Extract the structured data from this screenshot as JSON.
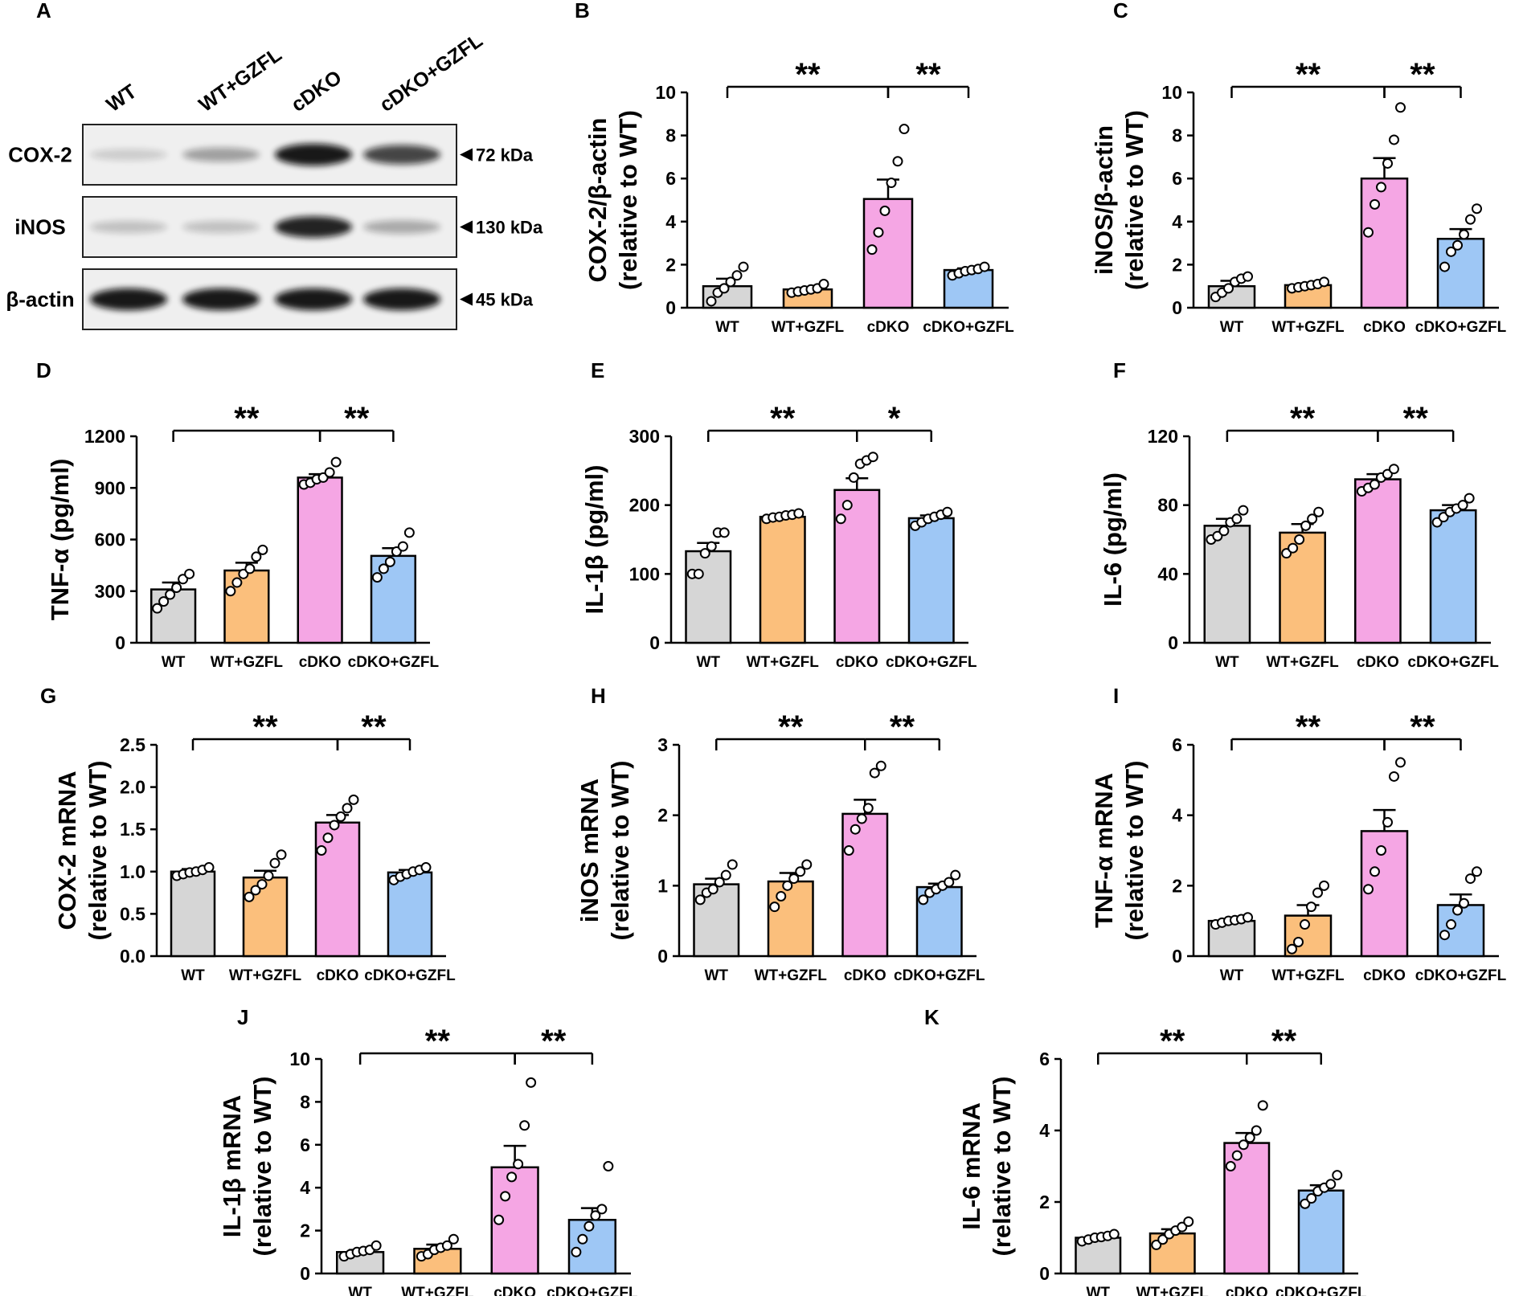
{
  "colors": {
    "WT": "#d6d6d6",
    "WT+GZFL": "#fbbf7c",
    "cDKO": "#f5a6e4",
    "cDKO+GZFL": "#9ec7f5"
  },
  "blot": {
    "letter": "A",
    "lanes": [
      "WT",
      "WT+GZFL",
      "cDKO",
      "cDKO+GZFL"
    ],
    "rows": [
      {
        "name": "COX-2",
        "kda": "72 kDa",
        "intensity": [
          0.15,
          0.35,
          0.95,
          0.75
        ]
      },
      {
        "name": "iNOS",
        "kda": "130 kDa",
        "intensity": [
          0.2,
          0.2,
          0.9,
          0.3
        ]
      },
      {
        "name": "β-actin",
        "kda": "45 kDa",
        "intensity": [
          0.95,
          0.95,
          0.95,
          0.95
        ]
      }
    ]
  },
  "chart_data": [
    {
      "letter": "B",
      "type": "bar",
      "title": "",
      "ylabel": [
        "COX-2/β-actin",
        "(relative to WT)"
      ],
      "categories": [
        "WT",
        "WT+GZFL",
        "cDKO",
        "cDKO+GZFL"
      ],
      "ylim": [
        0,
        10
      ],
      "yticks": [
        "0",
        "2",
        "4",
        "6",
        "8",
        "10"
      ],
      "values": [
        1.0,
        0.85,
        5.05,
        1.75
      ],
      "sem": [
        0.35,
        0.08,
        0.9,
        0.08
      ],
      "points": [
        [
          0.3,
          0.7,
          0.9,
          1.2,
          1.5,
          1.9
        ],
        [
          0.7,
          0.75,
          0.8,
          0.85,
          0.9,
          1.1
        ],
        [
          2.7,
          3.5,
          4.5,
          5.8,
          6.8,
          8.3
        ],
        [
          1.5,
          1.6,
          1.7,
          1.75,
          1.8,
          1.9
        ]
      ],
      "sig": [
        {
          "label": "**",
          "from": 0,
          "to": 2
        },
        {
          "label": "**",
          "from": 2,
          "to": 3
        }
      ]
    },
    {
      "letter": "C",
      "type": "bar",
      "title": "",
      "ylabel": [
        "iNOS/β-actin",
        "(relative to WT)"
      ],
      "categories": [
        "WT",
        "WT+GZFL",
        "cDKO",
        "cDKO+GZFL"
      ],
      "ylim": [
        0,
        10
      ],
      "yticks": [
        "0",
        "2",
        "4",
        "6",
        "8",
        "10"
      ],
      "values": [
        1.0,
        1.05,
        6.0,
        3.2
      ],
      "sem": [
        0.25,
        0.08,
        0.95,
        0.45
      ],
      "points": [
        [
          0.5,
          0.7,
          0.9,
          1.2,
          1.35,
          1.45
        ],
        [
          0.9,
          0.95,
          1.0,
          1.05,
          1.1,
          1.2
        ],
        [
          3.5,
          4.8,
          5.6,
          6.7,
          7.8,
          9.3
        ],
        [
          1.9,
          2.6,
          2.9,
          3.4,
          4.1,
          4.6
        ]
      ],
      "sig": [
        {
          "label": "**",
          "from": 0,
          "to": 2
        },
        {
          "label": "**",
          "from": 2,
          "to": 3
        }
      ]
    },
    {
      "letter": "D",
      "type": "bar",
      "title": "",
      "ylabel": [
        "TNF-α (pg/ml)"
      ],
      "categories": [
        "WT",
        "WT+GZFL",
        "cDKO",
        "cDKO+GZFL"
      ],
      "ylim": [
        0,
        1200
      ],
      "yticks": [
        "0",
        "300",
        "600",
        "900",
        "1200"
      ],
      "values": [
        310,
        420,
        960,
        505
      ],
      "sem": [
        40,
        45,
        20,
        45
      ],
      "points": [
        [
          200,
          240,
          280,
          320,
          370,
          400
        ],
        [
          300,
          350,
          400,
          430,
          500,
          540
        ],
        [
          920,
          930,
          950,
          960,
          990,
          1050
        ],
        [
          380,
          430,
          470,
          530,
          560,
          640
        ]
      ],
      "sig": [
        {
          "label": "**",
          "from": 0,
          "to": 2
        },
        {
          "label": "**",
          "from": 2,
          "to": 3
        }
      ]
    },
    {
      "letter": "E",
      "type": "bar",
      "title": "",
      "ylabel": [
        "IL-1β (pg/ml)"
      ],
      "categories": [
        "WT",
        "WT+GZFL",
        "cDKO",
        "cDKO+GZFL"
      ],
      "ylim": [
        0,
        300
      ],
      "yticks": [
        "0",
        "100",
        "200",
        "300"
      ],
      "values": [
        133,
        183,
        222,
        181
      ],
      "sem": [
        12,
        3,
        17,
        4
      ],
      "points": [
        [
          100,
          100,
          130,
          140,
          160,
          160
        ],
        [
          180,
          182,
          183,
          185,
          186,
          188
        ],
        [
          180,
          200,
          240,
          260,
          265,
          270
        ],
        [
          170,
          175,
          180,
          183,
          186,
          190
        ]
      ],
      "sig": [
        {
          "label": "**",
          "from": 0,
          "to": 2
        },
        {
          "label": "*",
          "from": 2,
          "to": 3
        }
      ]
    },
    {
      "letter": "F",
      "type": "bar",
      "title": "",
      "ylabel": [
        "IL-6 (pg/ml)"
      ],
      "categories": [
        "WT",
        "WT+GZFL",
        "cDKO",
        "cDKO+GZFL"
      ],
      "ylim": [
        0,
        120
      ],
      "yticks": [
        "0",
        "40",
        "80",
        "120"
      ],
      "values": [
        68,
        64,
        95,
        77
      ],
      "sem": [
        4,
        5,
        3,
        3
      ],
      "points": [
        [
          60,
          62,
          65,
          70,
          72,
          77
        ],
        [
          52,
          55,
          60,
          68,
          72,
          76
        ],
        [
          88,
          90,
          92,
          96,
          98,
          101
        ],
        [
          70,
          73,
          76,
          78,
          80,
          84
        ]
      ],
      "sig": [
        {
          "label": "**",
          "from": 0,
          "to": 2
        },
        {
          "label": "**",
          "from": 2,
          "to": 3
        }
      ]
    },
    {
      "letter": "G",
      "type": "bar",
      "title": "",
      "ylabel": [
        "COX-2 mRNA",
        "(relative to WT)"
      ],
      "categories": [
        "WT",
        "WT+GZFL",
        "cDKO",
        "cDKO+GZFL"
      ],
      "ylim": [
        0,
        2.5
      ],
      "yticks": [
        "0.0",
        "0.5",
        "1.0",
        "1.5",
        "2.0",
        "2.5"
      ],
      "values": [
        1.0,
        0.93,
        1.58,
        0.99
      ],
      "sem": [
        0.03,
        0.08,
        0.09,
        0.03
      ],
      "points": [
        [
          0.95,
          0.97,
          0.99,
          1.0,
          1.02,
          1.05
        ],
        [
          0.7,
          0.78,
          0.85,
          0.95,
          1.1,
          1.2
        ],
        [
          1.25,
          1.4,
          1.55,
          1.65,
          1.75,
          1.85
        ],
        [
          0.9,
          0.94,
          0.97,
          1.0,
          1.02,
          1.05
        ]
      ],
      "sig": [
        {
          "label": "**",
          "from": 0,
          "to": 2
        },
        {
          "label": "**",
          "from": 2,
          "to": 3
        }
      ]
    },
    {
      "letter": "H",
      "type": "bar",
      "title": "",
      "ylabel": [
        "iNOS mRNA",
        "(relative to WT)"
      ],
      "categories": [
        "WT",
        "WT+GZFL",
        "cDKO",
        "cDKO+GZFL"
      ],
      "ylim": [
        0,
        3
      ],
      "yticks": [
        "0",
        "1",
        "2",
        "3"
      ],
      "values": [
        1.02,
        1.06,
        2.02,
        0.98
      ],
      "sem": [
        0.08,
        0.12,
        0.2,
        0.05
      ],
      "points": [
        [
          0.8,
          0.9,
          0.95,
          1.05,
          1.15,
          1.3
        ],
        [
          0.7,
          0.85,
          1.0,
          1.1,
          1.2,
          1.3
        ],
        [
          1.5,
          1.8,
          1.95,
          2.1,
          2.6,
          2.7
        ],
        [
          0.8,
          0.9,
          0.95,
          1.0,
          1.05,
          1.15
        ]
      ],
      "sig": [
        {
          "label": "**",
          "from": 0,
          "to": 2
        },
        {
          "label": "**",
          "from": 2,
          "to": 3
        }
      ]
    },
    {
      "letter": "I",
      "type": "bar",
      "title": "",
      "ylabel": [
        "TNF-α mRNA",
        "(relative to WT)"
      ],
      "categories": [
        "WT",
        "WT+GZFL",
        "cDKO",
        "cDKO+GZFL"
      ],
      "ylim": [
        0,
        6
      ],
      "yticks": [
        "0",
        "2",
        "4",
        "6"
      ],
      "values": [
        1.0,
        1.15,
        3.55,
        1.45
      ],
      "sem": [
        0.05,
        0.3,
        0.6,
        0.3
      ],
      "points": [
        [
          0.9,
          0.95,
          1.0,
          1.02,
          1.05,
          1.1
        ],
        [
          0.2,
          0.4,
          0.9,
          1.4,
          1.8,
          2.0
        ],
        [
          1.9,
          2.4,
          3.0,
          3.8,
          5.1,
          5.5
        ],
        [
          0.6,
          0.9,
          1.3,
          1.5,
          2.2,
          2.4
        ]
      ],
      "sig": [
        {
          "label": "**",
          "from": 0,
          "to": 2
        },
        {
          "label": "**",
          "from": 2,
          "to": 3
        }
      ]
    },
    {
      "letter": "J",
      "type": "bar",
      "title": "",
      "ylabel": [
        "IL-1β mRNA",
        "(relative to WT)"
      ],
      "categories": [
        "WT",
        "WT+GZFL",
        "cDKO",
        "cDKO+GZFL"
      ],
      "ylim": [
        0,
        10
      ],
      "yticks": [
        "0",
        "2",
        "4",
        "6",
        "8",
        "10"
      ],
      "values": [
        1.0,
        1.15,
        4.95,
        2.5
      ],
      "sem": [
        0.1,
        0.2,
        1.0,
        0.55
      ],
      "points": [
        [
          0.8,
          0.9,
          1.0,
          1.05,
          1.1,
          1.3
        ],
        [
          0.8,
          0.9,
          1.1,
          1.2,
          1.3,
          1.6
        ],
        [
          2.5,
          3.6,
          4.5,
          5.1,
          6.9,
          8.9
        ],
        [
          1.0,
          1.6,
          2.2,
          2.7,
          3.0,
          5.0
        ]
      ],
      "sig": [
        {
          "label": "**",
          "from": 0,
          "to": 2
        },
        {
          "label": "**",
          "from": 2,
          "to": 3
        }
      ]
    },
    {
      "letter": "K",
      "type": "bar",
      "title": "",
      "ylabel": [
        "IL-6 mRNA",
        "(relative to WT)"
      ],
      "categories": [
        "WT",
        "WT+GZFL",
        "cDKO",
        "cDKO+GZFL"
      ],
      "ylim": [
        0,
        6
      ],
      "yticks": [
        "0",
        "2",
        "4",
        "6"
      ],
      "values": [
        1.0,
        1.12,
        3.65,
        2.32
      ],
      "sem": [
        0.05,
        0.12,
        0.28,
        0.15
      ],
      "points": [
        [
          0.9,
          0.95,
          1.0,
          1.02,
          1.05,
          1.1
        ],
        [
          0.8,
          0.95,
          1.1,
          1.2,
          1.3,
          1.45
        ],
        [
          3.0,
          3.3,
          3.6,
          3.8,
          4.0,
          4.7
        ],
        [
          1.95,
          2.1,
          2.3,
          2.4,
          2.5,
          2.75
        ]
      ],
      "sig": [
        {
          "label": "**",
          "from": 0,
          "to": 2
        },
        {
          "label": "**",
          "from": 2,
          "to": 3
        }
      ]
    }
  ]
}
